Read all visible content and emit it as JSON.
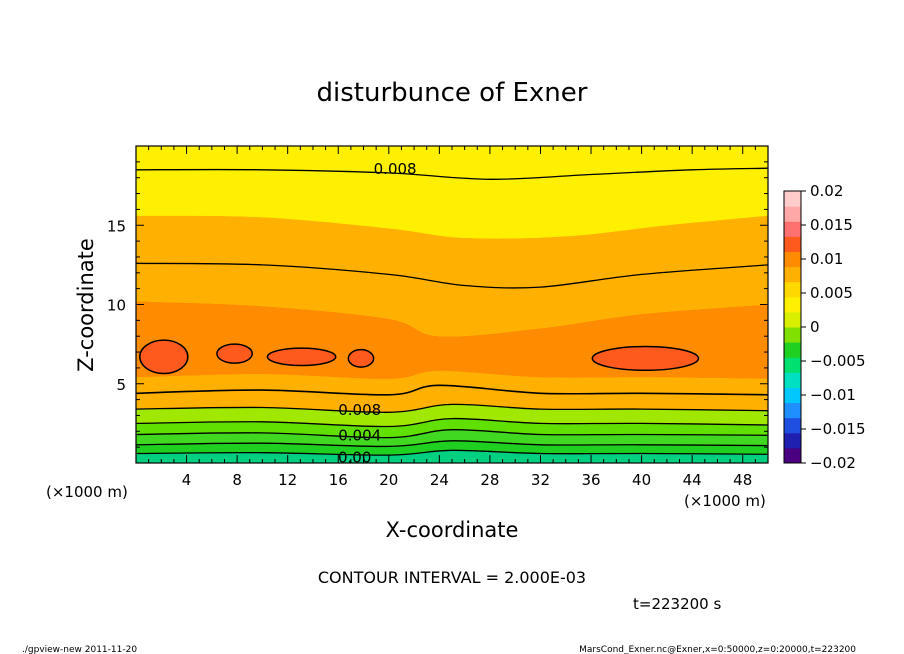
{
  "chart_data": {
    "type": "filled-contour",
    "title": "disturbunce of Exner",
    "xlabel": "X-coordinate",
    "ylabel": "Z-coordinate",
    "x_unit": "(×1000 m)",
    "z_unit": "(×1000 m)",
    "xlim": [
      0,
      50
    ],
    "zlim": [
      0,
      20
    ],
    "x_ticks": [
      4,
      8,
      12,
      16,
      20,
      24,
      28,
      32,
      36,
      40,
      44,
      48
    ],
    "z_ticks": [
      5,
      10,
      15
    ],
    "contour_interval_text": "CONTOUR INTERVAL = 2.000E-03",
    "contour_interval": 0.002,
    "time_text": "t=223200 s",
    "contour_labels": [
      {
        "text": "0.008",
        "x": 20.5,
        "z": 18.6
      },
      {
        "text": "0.008",
        "x": 17.7,
        "z": 3.4
      },
      {
        "text": "0.004",
        "x": 17.7,
        "z": 1.8
      },
      {
        "text": "0.00",
        "x": 17.3,
        "z": 0.4
      }
    ],
    "colorbar": {
      "min": -0.02,
      "max": 0.02,
      "tick_labels": [
        "0.02",
        "0.015",
        "0.01",
        "0.005",
        "0",
        "−0.005",
        "−0.01",
        "−0.015",
        "−0.02"
      ],
      "tick_values": [
        0.02,
        0.015,
        0.01,
        0.005,
        0,
        -0.005,
        -0.01,
        -0.015,
        -0.02
      ],
      "colors": [
        "#4b0082",
        "#2020b0",
        "#1f4fe0",
        "#1f8fff",
        "#00c8ff",
        "#00e0c0",
        "#00e070",
        "#20d020",
        "#80e000",
        "#d8f000",
        "#ffef00",
        "#ffd800",
        "#ffb000",
        "#ff8c00",
        "#ff5a1e",
        "#ff7070",
        "#ffa8a8",
        "#ffcccc"
      ]
    },
    "zone_colors": {
      "z0_2": "#80e000",
      "z2_4": "#d8f000",
      "z4_6": "#ffef00",
      "z6_8": "#ffd800",
      "z8_10": "#ffb000",
      "z10_12": "#ff8c00",
      "z12_14": "#ff5a1e"
    },
    "low_colors": [
      "#00d080",
      "#20d020",
      "#40d820",
      "#60e000",
      "#a0e800",
      "#d8f000"
    ],
    "line_color": "#000000"
  },
  "footer": {
    "left": "./gpview-new   2011-11-20",
    "right": "MarsCond_Exner.nc@Exner,x=0:50000,z=0:20000,t=223200"
  }
}
